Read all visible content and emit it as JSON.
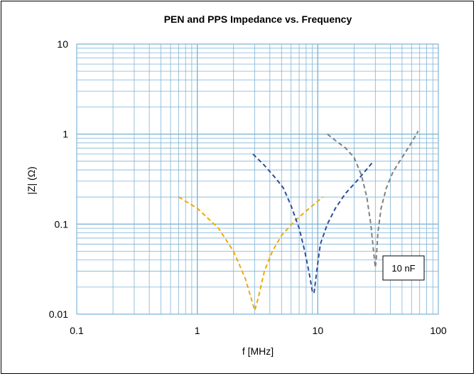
{
  "chart_data": {
    "type": "line",
    "title": "PEN and PPS Impedance vs. Frequency",
    "xlabel": "f [MHz]",
    "ylabel": "|Z| (Ω)",
    "xscale": "log",
    "yscale": "log",
    "xlim": [
      0.1,
      100
    ],
    "ylim": [
      0.01,
      10
    ],
    "xticks": [
      {
        "v": 0.1,
        "label": "0.1"
      },
      {
        "v": 1,
        "label": "1"
      },
      {
        "v": 10,
        "label": "10"
      },
      {
        "v": 100,
        "label": "100"
      }
    ],
    "yticks": [
      {
        "v": 0.01,
        "label": "0.01"
      },
      {
        "v": 0.1,
        "label": "0.1"
      },
      {
        "v": 1,
        "label": "1"
      },
      {
        "v": 10,
        "label": "10"
      }
    ],
    "grid": true,
    "legend": "none",
    "annotation": "10 nF",
    "series": [
      {
        "color": "#f2a900",
        "style": "dashed",
        "x": [
          0.7,
          1.0,
          1.5,
          2.0,
          2.5,
          2.8,
          3.0,
          3.2,
          3.6,
          4.2,
          5.0,
          6.5,
          8.5,
          11.0
        ],
        "y": [
          0.2,
          0.15,
          0.09,
          0.05,
          0.025,
          0.015,
          0.011,
          0.015,
          0.03,
          0.05,
          0.075,
          0.11,
          0.15,
          0.2
        ]
      },
      {
        "color": "#2e4d9b",
        "style": "dashed",
        "x": [
          2.9,
          3.6,
          4.5,
          5.2,
          6.0,
          7.0,
          7.8,
          8.5,
          9.0,
          9.3,
          9.8,
          10.5,
          12.0,
          14.0,
          17.0,
          21.0,
          26.0,
          29.0
        ],
        "y": [
          0.6,
          0.45,
          0.32,
          0.25,
          0.16,
          0.09,
          0.05,
          0.028,
          0.018,
          0.017,
          0.03,
          0.06,
          0.1,
          0.15,
          0.22,
          0.3,
          0.42,
          0.5
        ]
      },
      {
        "color": "#808080",
        "style": "dashed",
        "x": [
          12.0,
          14.0,
          17.0,
          20.0,
          23.0,
          25.5,
          27.5,
          29.0,
          30.0,
          30.5,
          31.5,
          33.5,
          37.0,
          42.0,
          50.0,
          58.0,
          68.0
        ],
        "y": [
          1.0,
          0.85,
          0.7,
          0.55,
          0.35,
          0.2,
          0.1,
          0.05,
          0.033,
          0.04,
          0.08,
          0.15,
          0.25,
          0.38,
          0.55,
          0.75,
          1.08
        ]
      }
    ]
  }
}
